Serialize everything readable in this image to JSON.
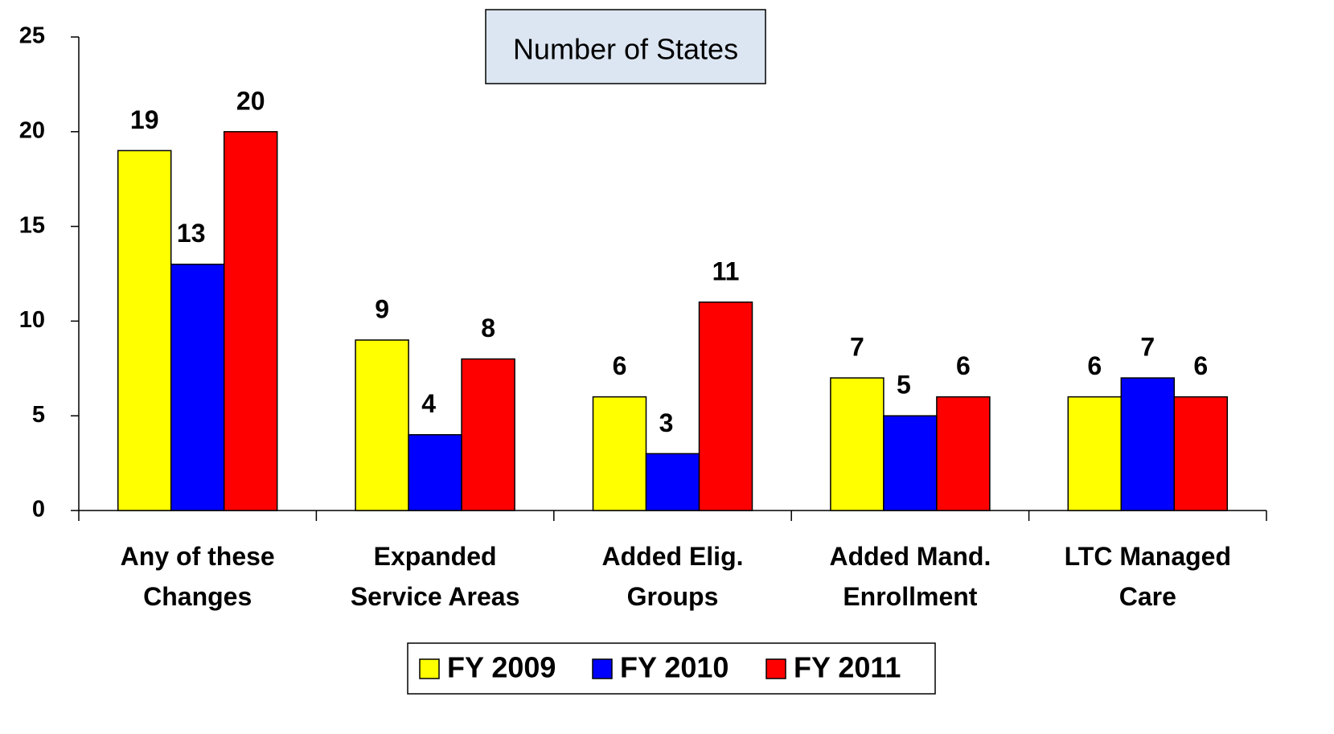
{
  "chart_data": {
    "type": "bar",
    "title": "Number of States",
    "categories": [
      "Any of these\nChanges",
      "Expanded\nService Areas",
      "Added Elig.\nGroups",
      "Added Mand.\nEnrollment",
      "LTC Managed\nCare"
    ],
    "series": [
      {
        "name": "FY 2009",
        "color": "#ffff00",
        "values": [
          19,
          9,
          6,
          7,
          6
        ]
      },
      {
        "name": "FY 2010",
        "color": "#0000ff",
        "values": [
          13,
          4,
          3,
          5,
          7
        ]
      },
      {
        "name": "FY 2011",
        "color": "#ff0000",
        "values": [
          20,
          8,
          11,
          6,
          6
        ]
      }
    ],
    "ylim": [
      0,
      25
    ],
    "yticks": [
      0,
      5,
      10,
      15,
      20,
      25
    ],
    "legend": "bottom"
  }
}
